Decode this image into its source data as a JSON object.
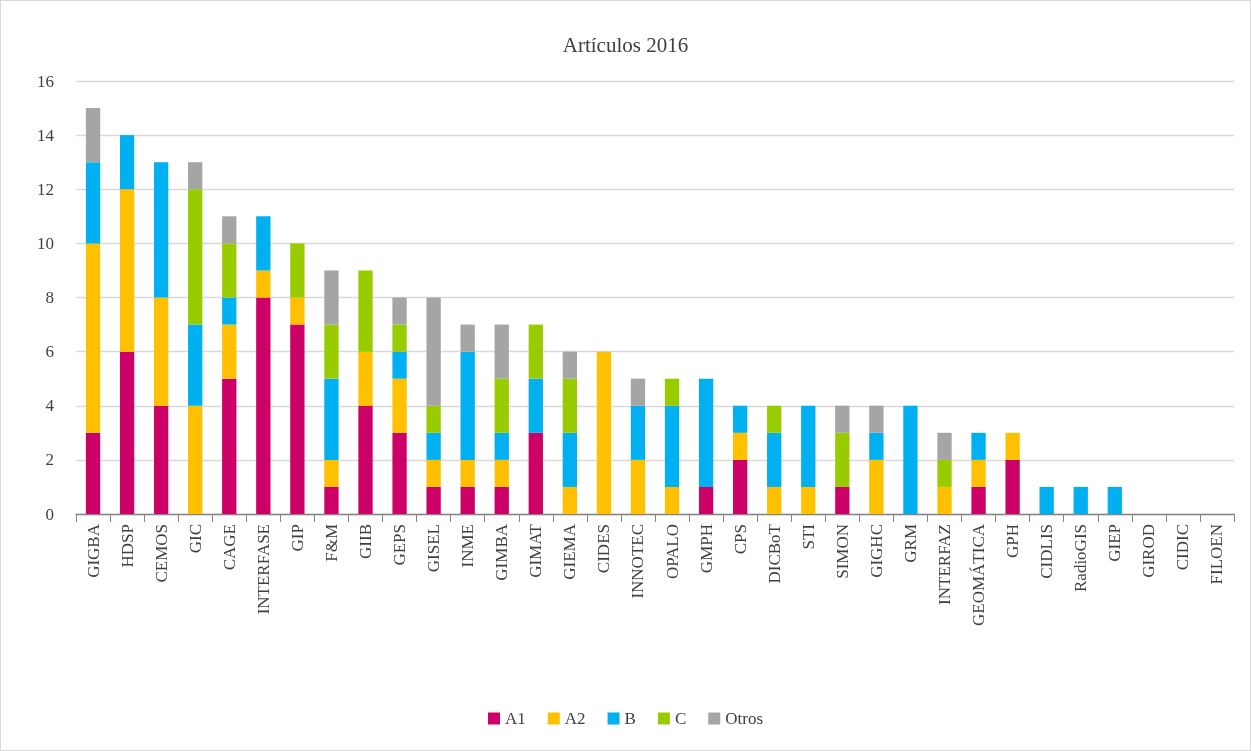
{
  "chart_data": {
    "type": "bar",
    "title": "Artículos 2016",
    "stacked": true,
    "categories": [
      "GIGBA",
      "HDSP",
      "CEMOS",
      "GIC",
      "CAGE",
      "INTERFASE",
      "GIP",
      "F&M",
      "GIIB",
      "GEPS",
      "GISEL",
      "INME",
      "GIMBA",
      "GIMAT",
      "GIEMA",
      "CIDES",
      "INNOTEC",
      "OPALO",
      "GMPH",
      "CPS",
      "DICBoT",
      "STI",
      "SIMON",
      "GIGHC",
      "GRM",
      "INTERFAZ",
      "GEOMÁTICA",
      "GPH",
      "CIDLIS",
      "RadioGIS",
      "GIEP",
      "GIROD",
      "CIDIC",
      "FILOEN"
    ],
    "series": [
      {
        "name": "A1",
        "color": "#cc0066",
        "values": [
          3,
          6,
          4,
          null,
          5,
          8,
          7,
          1,
          4,
          3,
          1,
          1,
          1,
          3,
          null,
          null,
          null,
          null,
          1,
          2,
          null,
          null,
          1,
          null,
          null,
          null,
          1,
          2,
          null,
          null,
          null,
          null,
          null,
          null
        ]
      },
      {
        "name": "A2",
        "color": "#ffc000",
        "values": [
          7,
          6,
          4,
          4,
          2,
          1,
          1,
          1,
          2,
          2,
          1,
          1,
          1,
          null,
          1,
          6,
          2,
          1,
          null,
          1,
          1,
          1,
          null,
          2,
          null,
          1,
          1,
          1,
          null,
          null,
          null,
          null,
          null,
          null
        ]
      },
      {
        "name": "B",
        "color": "#00b0f0",
        "values": [
          3,
          2,
          5,
          3,
          1,
          2,
          null,
          3,
          null,
          1,
          1,
          4,
          1,
          2,
          2,
          null,
          2,
          3,
          4,
          1,
          2,
          3,
          null,
          1,
          4,
          null,
          1,
          null,
          1,
          1,
          1,
          null,
          null,
          null
        ]
      },
      {
        "name": "C",
        "color": "#99cc00",
        "values": [
          null,
          null,
          null,
          5,
          2,
          null,
          2,
          2,
          3,
          1,
          1,
          null,
          2,
          2,
          2,
          null,
          null,
          1,
          null,
          null,
          1,
          null,
          2,
          null,
          null,
          1,
          null,
          null,
          null,
          null,
          null,
          null,
          null,
          null
        ]
      },
      {
        "name": "Otros",
        "color": "#a5a5a5",
        "values": [
          2,
          null,
          null,
          1,
          1,
          null,
          null,
          2,
          null,
          1,
          4,
          1,
          2,
          null,
          1,
          null,
          1,
          null,
          null,
          null,
          null,
          null,
          1,
          1,
          null,
          1,
          null,
          null,
          null,
          null,
          null,
          null,
          null,
          null
        ]
      }
    ],
    "ylim": [
      0,
      16
    ],
    "yticks": [
      0,
      2,
      4,
      6,
      8,
      10,
      12,
      14,
      16
    ],
    "grid": "y",
    "legend": "bottom"
  }
}
